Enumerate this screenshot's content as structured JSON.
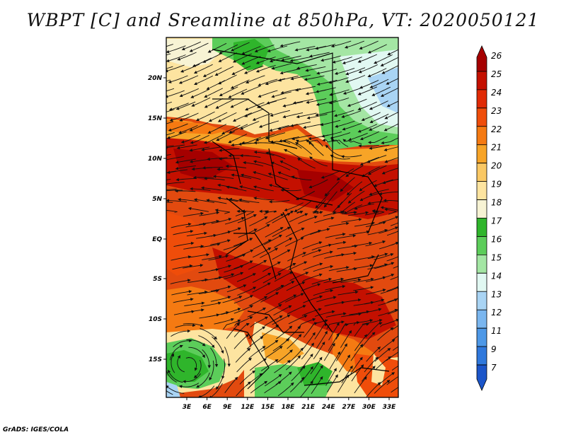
{
  "title": "WBPT [C] and Sreamline at 850hPa, VT: 2020050121",
  "credit": "GrADS: IGES/COLA",
  "axes": {
    "lat_labels": [
      "20N",
      "15N",
      "10N",
      "5N",
      "EQ",
      "5S",
      "10S",
      "15S"
    ],
    "lon_labels": [
      "3E",
      "6E",
      "9E",
      "12E",
      "15E",
      "18E",
      "21E",
      "24E",
      "27E",
      "30E",
      "33E"
    ]
  },
  "colorbar": {
    "labels": [
      "26",
      "25",
      "24",
      "23",
      "22",
      "21",
      "20",
      "19",
      "18",
      "17",
      "16",
      "15",
      "14",
      "13",
      "12",
      "11",
      "9",
      "7"
    ],
    "colors": [
      "#a50000",
      "#c41000",
      "#e02a05",
      "#ef4d0a",
      "#f57a12",
      "#f7a427",
      "#fac864",
      "#fde4a0",
      "#f7f3d4",
      "#2fb52b",
      "#5ccd5a",
      "#a4e6a4",
      "#e1f8f2",
      "#a9d4f4",
      "#7ab6ef",
      "#4d98e7",
      "#2f78dc",
      "#1b55c9"
    ]
  }
}
